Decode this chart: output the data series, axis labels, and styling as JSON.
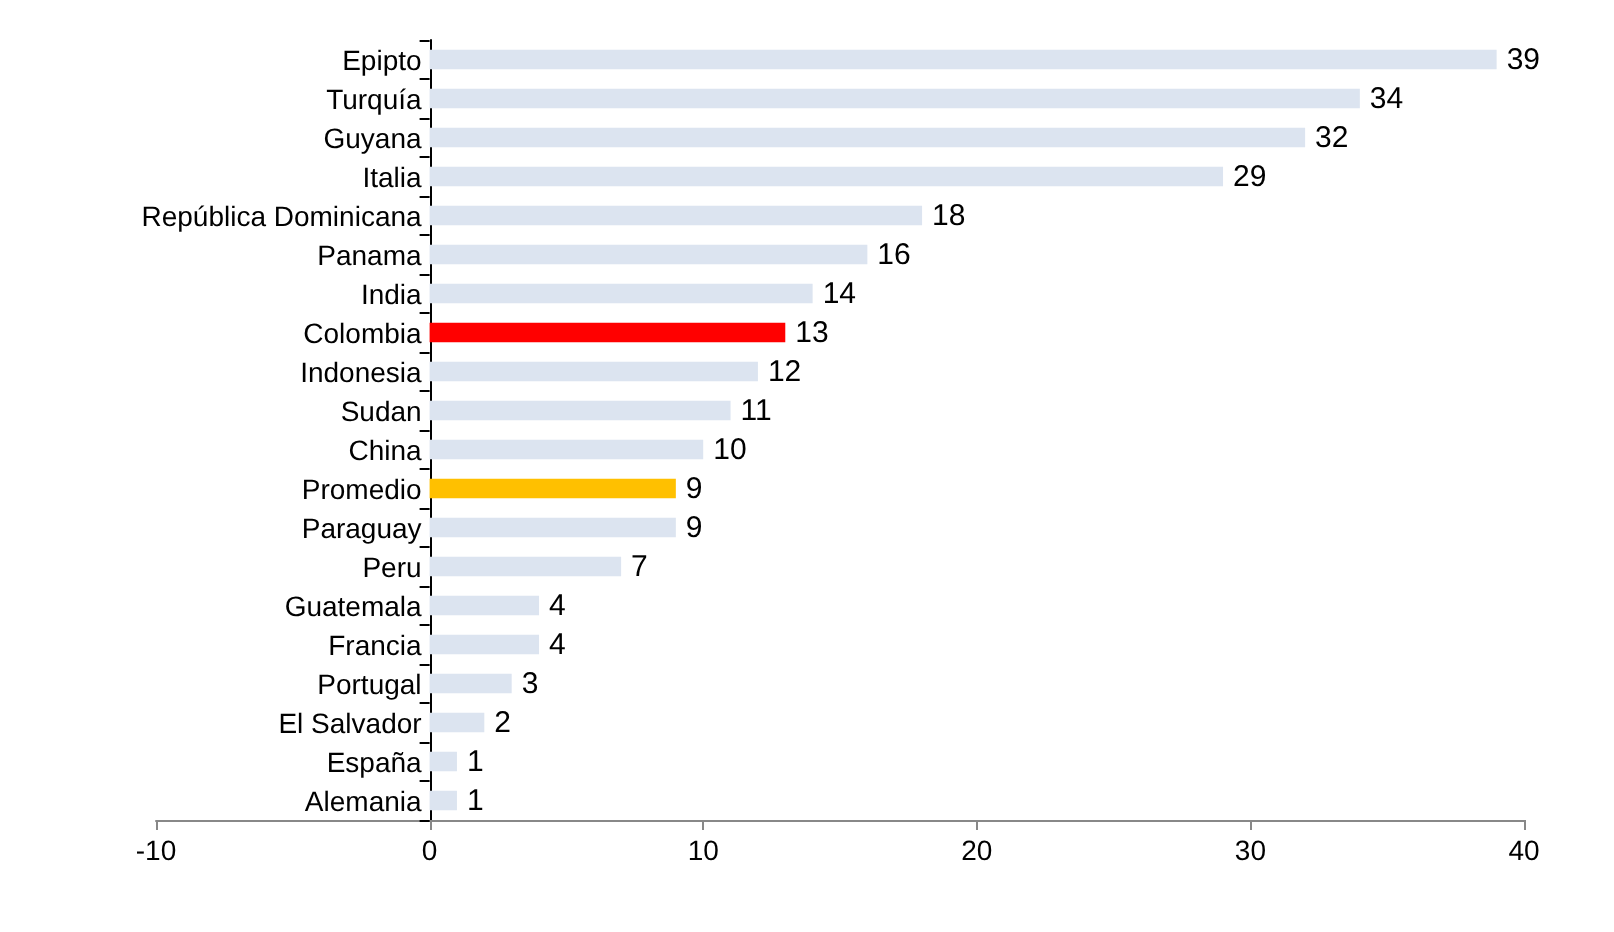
{
  "chart_data": {
    "type": "bar",
    "orientation": "horizontal",
    "categories": [
      "Epipto",
      "Turquía",
      "Guyana",
      "Italia",
      "República Dominicana",
      "Panama",
      "India",
      "Colombia",
      "Indonesia",
      "Sudan",
      "China",
      "Promedio",
      "Paraguay",
      "Peru",
      "Guatemala",
      "Francia",
      "Portugal",
      "El Salvador",
      "España",
      "Alemania"
    ],
    "values": [
      39,
      34,
      32,
      29,
      18,
      16,
      14,
      13,
      12,
      11,
      10,
      9,
      9,
      7,
      4,
      4,
      3,
      2,
      1,
      1
    ],
    "colors": [
      "#dce4f0",
      "#dce4f0",
      "#dce4f0",
      "#dce4f0",
      "#dce4f0",
      "#dce4f0",
      "#dce4f0",
      "#ff0000",
      "#dce4f0",
      "#dce4f0",
      "#dce4f0",
      "#ffc000",
      "#dce4f0",
      "#dce4f0",
      "#dce4f0",
      "#dce4f0",
      "#dce4f0",
      "#dce4f0",
      "#dce4f0",
      "#dce4f0"
    ],
    "xlim": [
      -10,
      40
    ],
    "xticks": [
      -10,
      0,
      10,
      20,
      30,
      40
    ],
    "data_labels": true
  }
}
